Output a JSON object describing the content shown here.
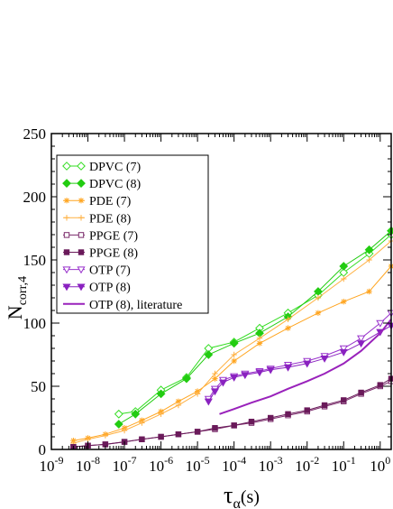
{
  "chart_data": {
    "type": "line",
    "title": "",
    "xlabel": {
      "main": "τ",
      "sub": "α",
      "suffix": "(s)"
    },
    "ylabel": {
      "main": "N",
      "sub": "corr,4"
    },
    "x_scale": "log",
    "xlim": [
      1e-09,
      2
    ],
    "ylim": [
      0,
      250
    ],
    "grid": false,
    "legend_position": "top-left",
    "y_ticks": [
      "0",
      "50",
      "100",
      "150",
      "200",
      "250"
    ],
    "x_ticks": [
      {
        "base": "10",
        "exp": "-9"
      },
      {
        "base": "10",
        "exp": "-8"
      },
      {
        "base": "10",
        "exp": "-7"
      },
      {
        "base": "10",
        "exp": "-6"
      },
      {
        "base": "10",
        "exp": "-5"
      },
      {
        "base": "10",
        "exp": "-4"
      },
      {
        "base": "10",
        "exp": "-3"
      },
      {
        "base": "10",
        "exp": "-2"
      },
      {
        "base": "10",
        "exp": "-1"
      },
      {
        "base": "10",
        "exp": "0"
      }
    ],
    "series": [
      {
        "name": "DPVC (7)",
        "color": "#33dd22",
        "marker": "diamond-open",
        "x": [
          7e-08,
          2e-07,
          1e-06,
          5e-06,
          2e-05,
          0.0001,
          0.0005,
          0.003,
          0.02,
          0.1,
          0.5,
          2
        ],
        "y": [
          28,
          30,
          47,
          57,
          80,
          85,
          96,
          108,
          122,
          140,
          155,
          170
        ]
      },
      {
        "name": "DPVC (8)",
        "color": "#22cc11",
        "marker": "diamond-filled",
        "x": [
          7e-08,
          2e-07,
          1e-06,
          5e-06,
          2e-05,
          0.0001,
          0.0005,
          0.003,
          0.02,
          0.1,
          0.5,
          2
        ],
        "y": [
          20,
          28,
          44,
          56,
          75,
          84,
          92,
          105,
          125,
          145,
          158,
          173
        ]
      },
      {
        "name": "PDE (7)",
        "color": "#ffa520",
        "marker": "star",
        "x": [
          4e-09,
          1e-08,
          3e-08,
          1e-07,
          3e-07,
          1e-06,
          3e-06,
          1e-05,
          3e-05,
          0.0001,
          0.0005,
          0.003,
          0.02,
          0.1,
          0.5,
          2
        ],
        "y": [
          7,
          9,
          12,
          17,
          23,
          30,
          38,
          46,
          56,
          70,
          84,
          96,
          108,
          117,
          125,
          145
        ]
      },
      {
        "name": "PDE (8)",
        "color": "#ffb040",
        "marker": "plus",
        "x": [
          4e-09,
          1e-08,
          3e-08,
          1e-07,
          3e-07,
          1e-06,
          3e-06,
          1e-05,
          3e-05,
          0.0001,
          0.0005,
          0.003,
          0.02,
          0.1,
          0.5,
          2
        ],
        "y": [
          5,
          8,
          11,
          15,
          21,
          28,
          35,
          44,
          60,
          75,
          88,
          103,
          120,
          135,
          150,
          165
        ]
      },
      {
        "name": "PPGE (7)",
        "color": "#7a2a6a",
        "marker": "square-open",
        "x": [
          4e-09,
          1e-08,
          3e-08,
          1e-07,
          3e-07,
          1e-06,
          3e-06,
          1e-05,
          3e-05,
          0.0001,
          0.0003,
          0.001,
          0.003,
          0.01,
          0.03,
          0.1,
          0.3,
          1,
          2
        ],
        "y": [
          2,
          3,
          4,
          6,
          8,
          10,
          12,
          14,
          16,
          19,
          21,
          24,
          27,
          30,
          34,
          38,
          44,
          50,
          54
        ]
      },
      {
        "name": "PPGE (8)",
        "color": "#6a1a5a",
        "marker": "square-filled",
        "x": [
          4e-09,
          1e-08,
          3e-08,
          1e-07,
          3e-07,
          1e-06,
          3e-06,
          1e-05,
          3e-05,
          0.0001,
          0.0003,
          0.001,
          0.003,
          0.01,
          0.03,
          0.1,
          0.3,
          1,
          2
        ],
        "y": [
          2,
          3,
          4,
          6,
          8,
          10,
          12,
          14,
          17,
          19,
          22,
          25,
          28,
          31,
          35,
          39,
          45,
          51,
          56
        ]
      },
      {
        "name": "OTP (7)",
        "color": "#9933cc",
        "marker": "triangle-down-open",
        "x": [
          2e-05,
          3e-05,
          5e-05,
          0.0001,
          0.0002,
          0.0005,
          0.001,
          0.003,
          0.01,
          0.03,
          0.1,
          0.3,
          1,
          2
        ],
        "y": [
          40,
          48,
          55,
          58,
          60,
          62,
          64,
          67,
          70,
          74,
          80,
          88,
          100,
          108
        ]
      },
      {
        "name": "OTP (8)",
        "color": "#8a22c0",
        "marker": "triangle-down-filled",
        "x": [
          2e-05,
          3e-05,
          5e-05,
          0.0001,
          0.0002,
          0.0005,
          0.001,
          0.003,
          0.01,
          0.03,
          0.1,
          0.3,
          1,
          2
        ],
        "y": [
          38,
          46,
          53,
          57,
          59,
          61,
          63,
          65,
          68,
          72,
          77,
          84,
          93,
          98
        ]
      },
      {
        "name": "OTP (8), literature",
        "color": "#9922bb",
        "marker": "none",
        "x": [
          4e-05,
          0.0001,
          0.0003,
          0.001,
          0.003,
          0.01,
          0.03,
          0.1,
          0.3,
          1,
          2
        ],
        "y": [
          28,
          32,
          37,
          42,
          48,
          54,
          60,
          68,
          78,
          92,
          103
        ]
      }
    ]
  }
}
